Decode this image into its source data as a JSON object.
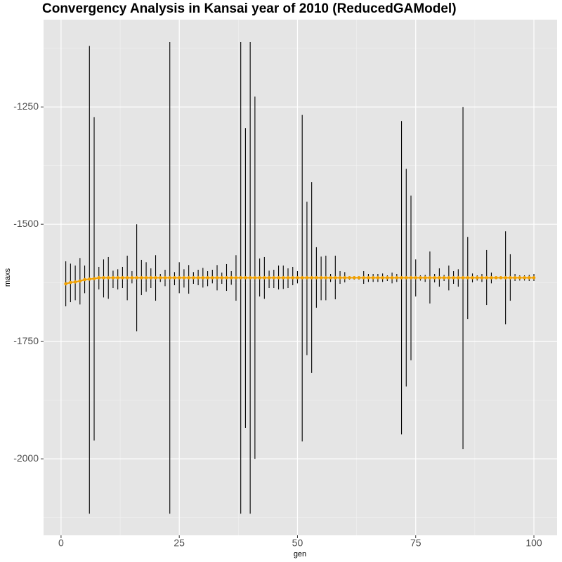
{
  "chart_data": {
    "type": "errorbar-line",
    "title": "Convergency Analysis in  Kansai year of 2010 (ReducedGAModel)",
    "x_label": "gen",
    "y_label": "maxs",
    "x": [
      1,
      2,
      3,
      4,
      5,
      6,
      7,
      8,
      9,
      10,
      11,
      12,
      13,
      14,
      15,
      16,
      17,
      18,
      19,
      20,
      21,
      22,
      23,
      24,
      25,
      26,
      27,
      28,
      29,
      30,
      31,
      32,
      33,
      34,
      35,
      36,
      37,
      38,
      39,
      40,
      41,
      42,
      43,
      44,
      45,
      46,
      47,
      48,
      49,
      50,
      51,
      52,
      53,
      54,
      55,
      56,
      57,
      58,
      59,
      60,
      61,
      62,
      63,
      64,
      65,
      66,
      67,
      68,
      69,
      70,
      71,
      72,
      73,
      74,
      75,
      76,
      77,
      78,
      79,
      80,
      81,
      82,
      83,
      84,
      85,
      86,
      87,
      88,
      89,
      90,
      91,
      92,
      93,
      94,
      95,
      96,
      97,
      98,
      99,
      100
    ],
    "series": [
      {
        "color": "#f0a000",
        "errorbar_color": "#000000",
        "values": [
          -1627,
          -1624,
          -1623,
          -1621,
          -1618,
          -1617,
          -1616,
          -1614,
          -1614,
          -1614,
          -1614,
          -1614,
          -1614,
          -1614,
          -1614,
          -1614,
          -1614,
          -1614,
          -1614,
          -1614,
          -1614,
          -1614,
          -1614,
          -1614,
          -1614,
          -1614,
          -1614,
          -1614,
          -1614,
          -1614,
          -1614,
          -1614,
          -1614,
          -1614,
          -1614,
          -1614,
          -1614,
          -1614,
          -1614,
          -1614,
          -1614,
          -1614,
          -1614,
          -1614,
          -1614,
          -1614,
          -1614,
          -1614,
          -1614,
          -1614,
          -1614,
          -1614,
          -1614,
          -1614,
          -1614,
          -1614,
          -1614,
          -1614,
          -1614,
          -1614,
          -1614,
          -1614,
          -1614,
          -1614,
          -1614,
          -1614,
          -1614,
          -1614,
          -1614,
          -1614,
          -1614,
          -1614,
          -1614,
          -1614,
          -1614,
          -1614,
          -1614,
          -1614,
          -1614,
          -1614,
          -1614,
          -1614,
          -1614,
          -1614,
          -1614,
          -1614,
          -1614,
          -1614,
          -1614,
          -1614,
          -1614,
          -1614,
          -1614,
          -1614,
          -1614,
          -1614,
          -1614,
          -1614,
          -1614,
          -1614
        ],
        "ymin": [
          -1675,
          -1666,
          -1662,
          -1671,
          -1647,
          -2117,
          -1961,
          -1639,
          -1656,
          -1659,
          -1636,
          -1639,
          -1636,
          -1662,
          -1626,
          -1728,
          -1651,
          -1644,
          -1636,
          -1663,
          -1623,
          -1632,
          -2117,
          -1630,
          -1647,
          -1635,
          -1648,
          -1627,
          -1630,
          -1635,
          -1632,
          -1626,
          -1641,
          -1627,
          -1642,
          -1629,
          -1663,
          -2117,
          -1934,
          -2117,
          -2000,
          -1654,
          -1659,
          -1636,
          -1636,
          -1639,
          -1638,
          -1636,
          -1630,
          -1626,
          -1963,
          -1779,
          -1817,
          -1678,
          -1662,
          -1662,
          -1623,
          -1660,
          -1627,
          -1624,
          -1618,
          -1618,
          -1618,
          -1627,
          -1623,
          -1623,
          -1623,
          -1623,
          -1621,
          -1626,
          -1623,
          -1948,
          -1846,
          -1790,
          -1654,
          -1620,
          -1623,
          -1669,
          -1624,
          -1633,
          -1621,
          -1641,
          -1627,
          -1633,
          -1979,
          -1702,
          -1624,
          -1620,
          -1623,
          -1672,
          -1626,
          -1617,
          -1617,
          -1713,
          -1663,
          -1621,
          -1620,
          -1620,
          -1621,
          -1621
        ],
        "ymax": [
          -1579,
          -1584,
          -1588,
          -1572,
          -1588,
          -1120,
          -1272,
          -1591,
          -1575,
          -1570,
          -1599,
          -1596,
          -1591,
          -1567,
          -1600,
          -1500,
          -1576,
          -1581,
          -1594,
          -1566,
          -1606,
          -1597,
          -1112,
          -1602,
          -1581,
          -1596,
          -1587,
          -1602,
          -1597,
          -1593,
          -1600,
          -1597,
          -1587,
          -1603,
          -1585,
          -1600,
          -1566,
          -1112,
          -1295,
          -1112,
          -1228,
          -1573,
          -1570,
          -1599,
          -1597,
          -1588,
          -1588,
          -1594,
          -1591,
          -1600,
          -1267,
          -1452,
          -1410,
          -1549,
          -1569,
          -1567,
          -1606,
          -1567,
          -1600,
          -1602,
          -1611,
          -1611,
          -1611,
          -1600,
          -1606,
          -1606,
          -1606,
          -1605,
          -1609,
          -1603,
          -1606,
          -1280,
          -1382,
          -1439,
          -1575,
          -1609,
          -1608,
          -1558,
          -1606,
          -1594,
          -1608,
          -1588,
          -1600,
          -1596,
          -1250,
          -1527,
          -1605,
          -1609,
          -1606,
          -1555,
          -1603,
          -1611,
          -1611,
          -1515,
          -1564,
          -1606,
          -1609,
          -1609,
          -1608,
          -1606
        ]
      }
    ],
    "xlim": [
      -3.7,
      104.9
    ],
    "ylim": [
      -2163,
      -1064
    ],
    "xticks": [
      0,
      25,
      50,
      75,
      100
    ],
    "yticks": [
      -2000,
      -1750,
      -1500,
      -1250
    ],
    "grid": true
  }
}
